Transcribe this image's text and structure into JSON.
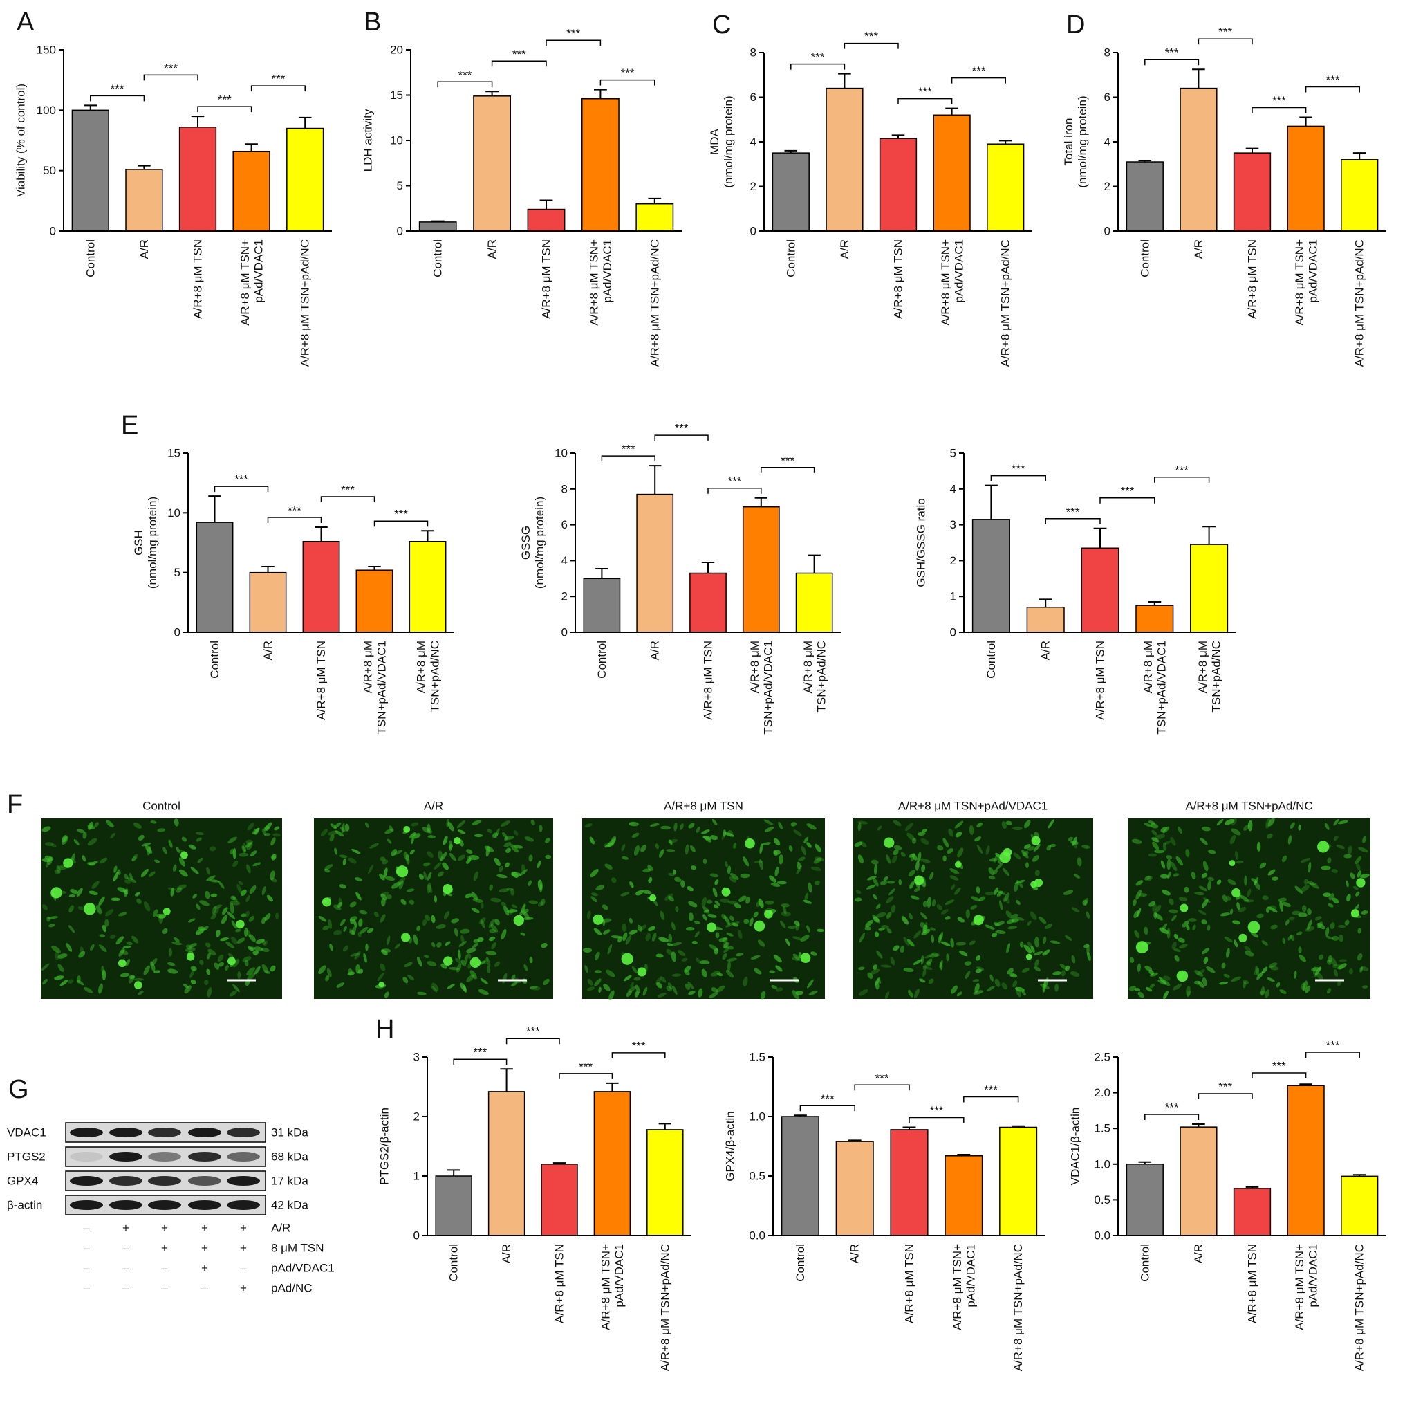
{
  "chart_data": [
    {
      "type": "bar",
      "panel": "A",
      "y_label": "Viability (% of control)",
      "categories": [
        "Control",
        "A/R",
        "A/R+8 μM TSN",
        "A/R+8 μM TSN+\npAd/VDAC1",
        "A/R+8 μM TSN+pAd/NC"
      ],
      "values": [
        100,
        51,
        86,
        66,
        85
      ],
      "errors": [
        4,
        3,
        9,
        6,
        9
      ],
      "colors": [
        "#808080",
        "#f4b77e",
        "#f04343",
        "#ff7f00",
        "#ffff00"
      ],
      "ylim": [
        0,
        150
      ],
      "yticks": [
        0,
        50,
        100,
        150
      ],
      "significance": [
        {
          "bars": [
            0,
            1
          ],
          "label": "***"
        },
        {
          "bars": [
            1,
            2
          ],
          "label": "***"
        },
        {
          "bars": [
            2,
            3
          ],
          "label": "***"
        },
        {
          "bars": [
            3,
            4
          ],
          "label": "***"
        }
      ]
    },
    {
      "type": "bar",
      "panel": "B",
      "y_label": "LDH activity",
      "categories": [
        "Control",
        "A/R",
        "A/R+8 μM TSN",
        "A/R+8 μM TSN+\npAd/VDAC1",
        "A/R+8 μM TSN+pAd/NC"
      ],
      "values": [
        1.0,
        14.9,
        2.4,
        14.6,
        3.0
      ],
      "errors": [
        0.1,
        0.5,
        1.0,
        1.0,
        0.6
      ],
      "colors": [
        "#808080",
        "#f4b77e",
        "#f04343",
        "#ff7f00",
        "#ffff00"
      ],
      "ylim": [
        0,
        20
      ],
      "yticks": [
        0,
        5,
        10,
        15,
        20
      ],
      "significance": [
        {
          "bars": [
            0,
            1
          ],
          "label": "***"
        },
        {
          "bars": [
            1,
            2
          ],
          "label": "***"
        },
        {
          "bars": [
            2,
            3
          ],
          "label": "***"
        },
        {
          "bars": [
            3,
            4
          ],
          "label": "***"
        }
      ]
    },
    {
      "type": "bar",
      "panel": "C",
      "y_label": "MDA\n(nmol/mg protein)",
      "categories": [
        "Control",
        "A/R",
        "A/R+8 μM TSN",
        "A/R+8 μM TSN+\npAd/VDAC1",
        "A/R+8 μM TSN+pAd/NC"
      ],
      "values": [
        3.5,
        6.4,
        4.15,
        5.2,
        3.9
      ],
      "errors": [
        0.1,
        0.65,
        0.15,
        0.3,
        0.15
      ],
      "colors": [
        "#808080",
        "#f4b77e",
        "#f04343",
        "#ff7f00",
        "#ffff00"
      ],
      "ylim": [
        0,
        8
      ],
      "yticks": [
        0,
        2,
        4,
        6,
        8
      ],
      "significance": [
        {
          "bars": [
            0,
            1
          ],
          "label": "***"
        },
        {
          "bars": [
            1,
            2
          ],
          "label": "***"
        },
        {
          "bars": [
            2,
            3
          ],
          "label": "***"
        },
        {
          "bars": [
            3,
            4
          ],
          "label": "***"
        }
      ]
    },
    {
      "type": "bar",
      "panel": "D",
      "y_label": "Total iron\n(nmol/mg protein)",
      "categories": [
        "Control",
        "A/R",
        "A/R+8 μM TSN",
        "A/R+8 μM TSN+\npAd/VDAC1",
        "A/R+8 μM TSN+pAd/NC"
      ],
      "values": [
        3.1,
        6.4,
        3.5,
        4.7,
        3.2
      ],
      "errors": [
        0.06,
        0.85,
        0.2,
        0.4,
        0.3
      ],
      "colors": [
        "#808080",
        "#f4b77e",
        "#f04343",
        "#ff7f00",
        "#ffff00"
      ],
      "ylim": [
        0,
        8
      ],
      "yticks": [
        0,
        2,
        4,
        6,
        8
      ],
      "significance": [
        {
          "bars": [
            0,
            1
          ],
          "label": "***"
        },
        {
          "bars": [
            1,
            2
          ],
          "label": "***"
        },
        {
          "bars": [
            2,
            3
          ],
          "label": "***"
        },
        {
          "bars": [
            3,
            4
          ],
          "label": "***"
        }
      ]
    },
    {
      "type": "bar",
      "panel": "E",
      "y_label": "GSH\n(nmol/mg protein)",
      "categories": [
        "Control",
        "A/R",
        "A/R+8 μM TSN",
        "A/R+8 μM\nTSN+pAd/VDAC1",
        "A/R+8 μM\nTSN+pAd/NC"
      ],
      "values": [
        9.2,
        5.0,
        7.6,
        5.2,
        7.6
      ],
      "errors": [
        2.2,
        0.5,
        1.2,
        0.3,
        0.9
      ],
      "colors": [
        "#808080",
        "#f4b77e",
        "#f04343",
        "#ff7f00",
        "#ffff00"
      ],
      "ylim": [
        0,
        15
      ],
      "yticks": [
        0,
        5,
        10,
        15
      ],
      "significance": [
        {
          "bars": [
            0,
            1
          ],
          "label": "***"
        },
        {
          "bars": [
            1,
            2
          ],
          "label": "***"
        },
        {
          "bars": [
            2,
            3
          ],
          "label": "***"
        },
        {
          "bars": [
            3,
            4
          ],
          "label": "***"
        }
      ]
    },
    {
      "type": "bar",
      "y_label": "GSSG\n(nmol/mg protein)",
      "categories": [
        "Control",
        "A/R",
        "A/R+8 μM TSN",
        "A/R+8 μM\nTSN+pAd/VDAC1",
        "A/R+8 μM\nTSN+pAd/NC"
      ],
      "values": [
        3.0,
        7.7,
        3.3,
        7.0,
        3.3
      ],
      "errors": [
        0.55,
        1.6,
        0.6,
        0.5,
        1.0
      ],
      "colors": [
        "#808080",
        "#f4b77e",
        "#f04343",
        "#ff7f00",
        "#ffff00"
      ],
      "ylim": [
        0,
        10
      ],
      "yticks": [
        0,
        2,
        4,
        6,
        8,
        10
      ],
      "significance": [
        {
          "bars": [
            0,
            1
          ],
          "label": "***"
        },
        {
          "bars": [
            1,
            2
          ],
          "label": "***"
        },
        {
          "bars": [
            2,
            3
          ],
          "label": "***"
        },
        {
          "bars": [
            3,
            4
          ],
          "label": "***"
        }
      ]
    },
    {
      "type": "bar",
      "y_label": "GSH/GSSG ratio",
      "categories": [
        "Control",
        "A/R",
        "A/R+8 μM TSN",
        "A/R+8 μM\nTSN+pAd/VDAC1",
        "A/R+8 μM\nTSN+pAd/NC"
      ],
      "values": [
        3.15,
        0.7,
        2.35,
        0.75,
        2.45
      ],
      "errors": [
        0.95,
        0.22,
        0.55,
        0.1,
        0.5
      ],
      "colors": [
        "#808080",
        "#f4b77e",
        "#f04343",
        "#ff7f00",
        "#ffff00"
      ],
      "ylim": [
        0,
        5
      ],
      "yticks": [
        0,
        1,
        2,
        3,
        4,
        5
      ],
      "significance": [
        {
          "bars": [
            0,
            1
          ],
          "label": "***"
        },
        {
          "bars": [
            1,
            2
          ],
          "label": "***"
        },
        {
          "bars": [
            2,
            3
          ],
          "label": "***"
        },
        {
          "bars": [
            3,
            4
          ],
          "label": "***"
        }
      ]
    },
    {
      "type": "bar",
      "panel": "H",
      "y_label": "PTGS2/β-actin",
      "categories": [
        "Control",
        "A/R",
        "A/R+8 μM TSN",
        "A/R+8 μM TSN+\npAd/VDAC1",
        "A/R+8 μM TSN+pAd/NC"
      ],
      "values": [
        1.0,
        2.42,
        1.2,
        2.42,
        1.78
      ],
      "errors": [
        0.1,
        0.38,
        0.02,
        0.14,
        0.1
      ],
      "colors": [
        "#808080",
        "#f4b77e",
        "#f04343",
        "#ff7f00",
        "#ffff00"
      ],
      "ylim": [
        0,
        3
      ],
      "yticks": [
        0,
        1,
        2,
        3
      ],
      "significance": [
        {
          "bars": [
            0,
            1
          ],
          "label": "***"
        },
        {
          "bars": [
            1,
            2
          ],
          "label": "***"
        },
        {
          "bars": [
            2,
            3
          ],
          "label": "***"
        },
        {
          "bars": [
            3,
            4
          ],
          "label": "***"
        }
      ]
    },
    {
      "type": "bar",
      "y_label": "GPX4/β-actin",
      "categories": [
        "Control",
        "A/R",
        "A/R+8 μM TSN",
        "A/R+8 μM TSN+\npAd/VDAC1",
        "A/R+8 μM TSN+pAd/NC"
      ],
      "values": [
        1.0,
        0.79,
        0.89,
        0.67,
        0.91
      ],
      "errors": [
        0.01,
        0.01,
        0.02,
        0.01,
        0.01
      ],
      "colors": [
        "#808080",
        "#f4b77e",
        "#f04343",
        "#ff7f00",
        "#ffff00"
      ],
      "ylim": [
        0,
        1.5
      ],
      "yticks": [
        {
          "value": 0,
          "label": "0.0"
        },
        0.5,
        {
          "value": 1,
          "label": "1.0"
        },
        1.5
      ],
      "significance": [
        {
          "bars": [
            0,
            1
          ],
          "label": "***"
        },
        {
          "bars": [
            1,
            2
          ],
          "label": "***"
        },
        {
          "bars": [
            2,
            3
          ],
          "label": "***"
        },
        {
          "bars": [
            3,
            4
          ],
          "label": "***"
        }
      ]
    },
    {
      "type": "bar",
      "y_label": "VDAC1/β-actin",
      "categories": [
        "Control",
        "A/R",
        "A/R+8 μM TSN",
        "A/R+8 μM TSN+\npAd/VDAC1",
        "A/R+8 μM TSN+pAd/NC"
      ],
      "values": [
        1.0,
        1.52,
        0.66,
        2.1,
        0.83
      ],
      "errors": [
        0.03,
        0.04,
        0.02,
        0.02,
        0.02
      ],
      "colors": [
        "#808080",
        "#f4b77e",
        "#f04343",
        "#ff7f00",
        "#ffff00"
      ],
      "ylim": [
        0,
        2.5
      ],
      "yticks": [
        {
          "value": 0,
          "label": "0.0"
        },
        0.5,
        {
          "value": 1,
          "label": "1.0"
        },
        1.5,
        {
          "value": 2,
          "label": "2.0"
        },
        2.5
      ],
      "significance": [
        {
          "bars": [
            0,
            1
          ],
          "label": "***"
        },
        {
          "bars": [
            1,
            2
          ],
          "label": "***"
        },
        {
          "bars": [
            2,
            3
          ],
          "label": "***"
        },
        {
          "bars": [
            3,
            4
          ],
          "label": "***"
        }
      ]
    }
  ],
  "panel_f": {
    "label": "F",
    "titles": [
      "Control",
      "A/R",
      "A/R+8 μM TSN",
      "A/R+8 μM TSN+pAd/VDAC1",
      "A/R+8 μM TSN+pAd/NC"
    ]
  },
  "panel_g": {
    "label": "G",
    "rows": [
      {
        "name": "VDAC1",
        "size": "31 kDa"
      },
      {
        "name": "PTGS2",
        "size": "68 kDa"
      },
      {
        "name": "GPX4",
        "size": "17 kDa"
      },
      {
        "name": "β-actin",
        "size": "42 kDa"
      }
    ],
    "conditions": [
      {
        "name": "A/R",
        "signs": [
          "–",
          "+",
          "+",
          "+",
          "+"
        ]
      },
      {
        "name": "8 μM TSN",
        "signs": [
          "–",
          "–",
          "+",
          "+",
          "+"
        ]
      },
      {
        "name": "pAd/VDAC1",
        "signs": [
          "–",
          "–",
          "–",
          "+",
          "–"
        ]
      },
      {
        "name": "pAd/NC",
        "signs": [
          "–",
          "–",
          "–",
          "–",
          "+"
        ]
      }
    ]
  }
}
